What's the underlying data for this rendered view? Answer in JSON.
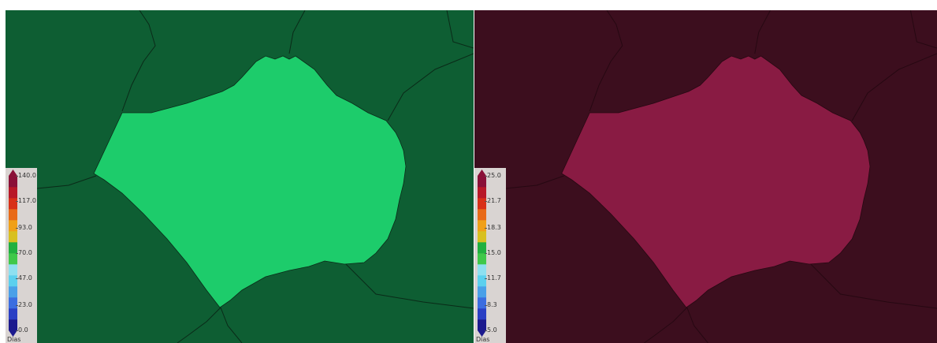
{
  "maps": [
    {
      "id": "left",
      "background_color": "#0e5e33",
      "region_color": "#1dcc6b",
      "legend": {
        "ticks": [
          "140.0",
          "117.0",
          "93.0",
          "70.0",
          "47.0",
          "23.0",
          "0.0"
        ],
        "values": [
          140.0,
          117.0,
          93.0,
          70.0,
          47.0,
          23.0,
          0.0
        ],
        "min": 0.0,
        "max": 140.0,
        "unit": "Dias"
      }
    },
    {
      "id": "right",
      "background_color": "#3c0e1e",
      "region_color": "#891b43",
      "legend": {
        "ticks": [
          "25.0",
          "21.7",
          "18.3",
          "15.0",
          "11.7",
          "8.3",
          "5.0"
        ],
        "values": [
          25.0,
          21.7,
          18.3,
          15.0,
          11.7,
          8.3,
          5.0
        ],
        "min": 5.0,
        "max": 25.0,
        "unit": "Dias"
      }
    }
  ],
  "colormap": [
    "#1c1a8e",
    "#2a3fc4",
    "#3b6de0",
    "#4aa0e8",
    "#5cd0ee",
    "#8ee0f0",
    "#3fc84a",
    "#20b040",
    "#d8c020",
    "#f0a018",
    "#e86a18",
    "#d83018",
    "#b81828",
    "#8a1038"
  ]
}
